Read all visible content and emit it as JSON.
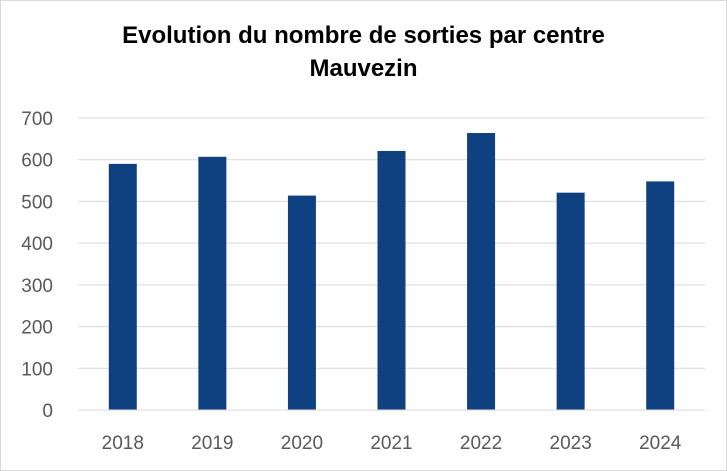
{
  "chart_data": {
    "type": "bar",
    "title": "Evolution du nombre de sorties par centre",
    "subtitle": "Mauvezin",
    "categories": [
      "2018",
      "2019",
      "2020",
      "2021",
      "2022",
      "2023",
      "2024"
    ],
    "values": [
      590,
      607,
      514,
      621,
      664,
      521,
      548
    ],
    "ylim": [
      0,
      700
    ],
    "yticks": [
      "0",
      "100",
      "200",
      "300",
      "400",
      "500",
      "600",
      "700"
    ],
    "grid": true,
    "legend": "none",
    "bar_color": "#0f4180",
    "grid_color": "#d9d9d9",
    "tick_color": "#595959"
  }
}
